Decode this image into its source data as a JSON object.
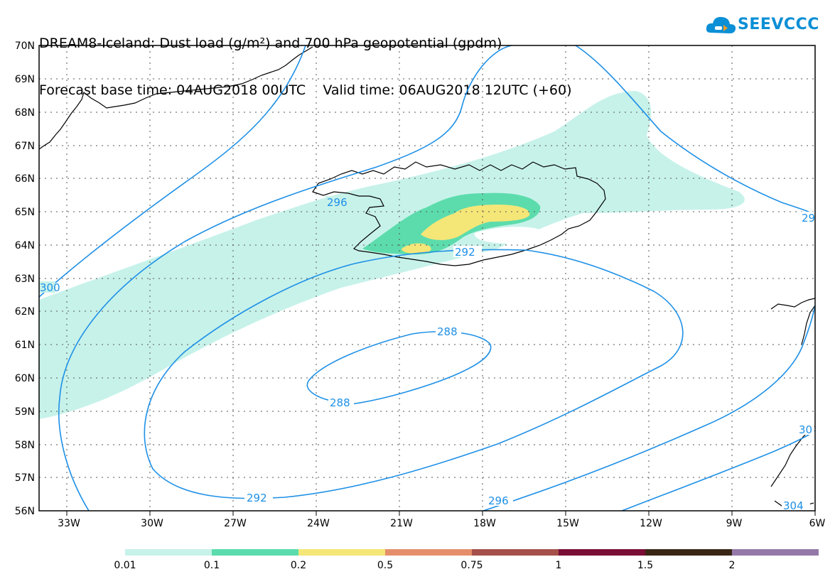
{
  "title": {
    "line1": "DREAM8-Iceland: Dust load (g/m²) and 700 hPa geopotential (gpdm)",
    "line2": "Forecast base time: 04AUG2018 00UTC    Valid time: 06AUG2018 12UTC (+60)"
  },
  "logo": {
    "text": "SEEVCCC",
    "icon": "cloud-icon"
  },
  "map": {
    "lat_labels": [
      "70N",
      "69N",
      "68N",
      "67N",
      "66N",
      "65N",
      "64N",
      "63N",
      "62N",
      "61N",
      "60N",
      "59N",
      "58N",
      "57N",
      "56N"
    ],
    "lon_labels": [
      "33W",
      "30W",
      "27W",
      "24W",
      "21W",
      "18W",
      "15W",
      "12W",
      "9W",
      "6W"
    ],
    "lat_range": [
      56,
      70
    ],
    "lon_range": [
      -34,
      -6
    ],
    "contour_labels": [
      "300",
      "296",
      "292",
      "288",
      "288",
      "292",
      "296",
      "29",
      "304",
      "30"
    ],
    "contour_color": "#1e90e6",
    "land_outline_color": "#000000"
  },
  "legend": {
    "labels": [
      "0.01",
      "0.1",
      "0.2",
      "0.5",
      "0.75",
      "1",
      "1.5",
      "2"
    ],
    "colors": [
      "#c7f2ea",
      "#5cdcac",
      "#f5e678",
      "#e58f6a",
      "#a5504a",
      "#7a0d36",
      "#3a2614",
      "#9479a8"
    ]
  }
}
